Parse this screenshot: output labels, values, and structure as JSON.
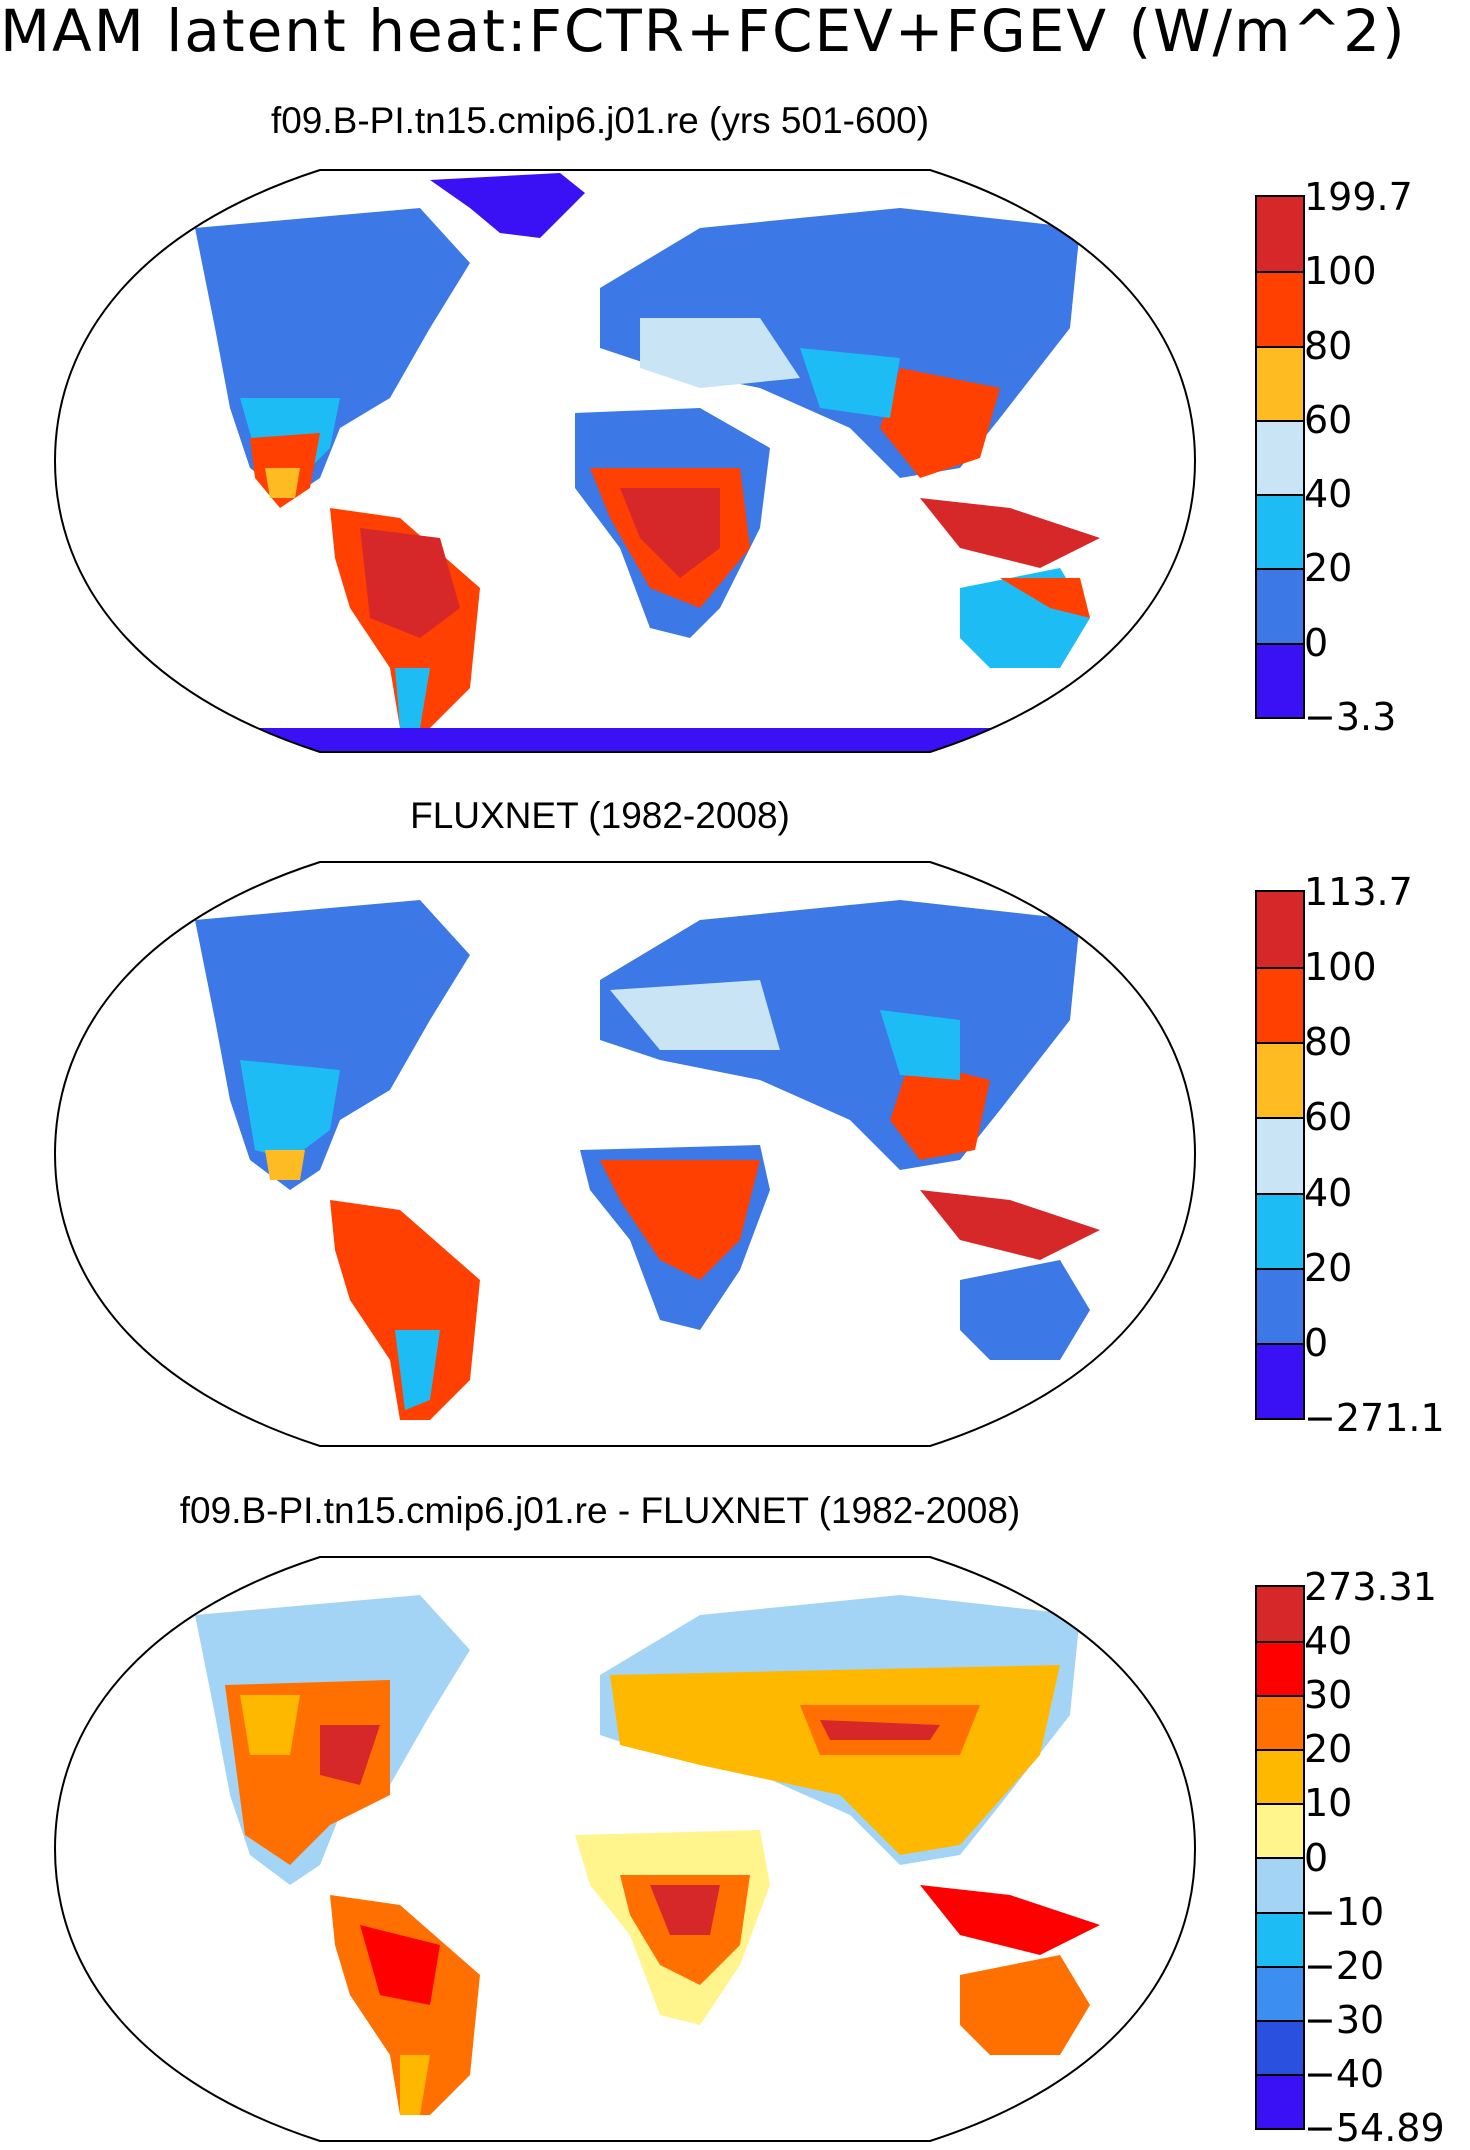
{
  "title": "MAM latent heat:FCTR+FCEV+FGEV (W/m^2)",
  "panels": [
    {
      "title": "f09.B-PI.tn15.cmip6.j01.re (yrs 501-600)",
      "colorbar": {
        "labels": [
          "199.7",
          "100",
          "80",
          "60",
          "40",
          "20",
          "0",
          "−3.3"
        ],
        "colors": [
          "#d62828",
          "#ff4000",
          "#ffbb22",
          "#c8e4f5",
          "#1ebcf5",
          "#3c78e6",
          "#3a10f5"
        ]
      }
    },
    {
      "title": "FLUXNET (1982-2008)",
      "colorbar": {
        "labels": [
          "113.7",
          "100",
          "80",
          "60",
          "40",
          "20",
          "0",
          "−271.1"
        ],
        "colors": [
          "#d62828",
          "#ff4000",
          "#ffbb22",
          "#c8e4f5",
          "#1ebcf5",
          "#3c78e6",
          "#3a10f5"
        ]
      }
    },
    {
      "title": "f09.B-PI.tn15.cmip6.j01.re - FLUXNET (1982-2008)",
      "colorbar": {
        "labels": [
          "273.31",
          "40",
          "30",
          "20",
          "10",
          "0",
          "−10",
          "−20",
          "−30",
          "−40",
          "−54.89"
        ],
        "colors": [
          "#d62828",
          "#ff0000",
          "#ff7000",
          "#ffb800",
          "#fff58c",
          "#a4d4f5",
          "#1ebcf5",
          "#3c8ef0",
          "#2a50e0",
          "#3a10f5"
        ]
      }
    }
  ]
}
